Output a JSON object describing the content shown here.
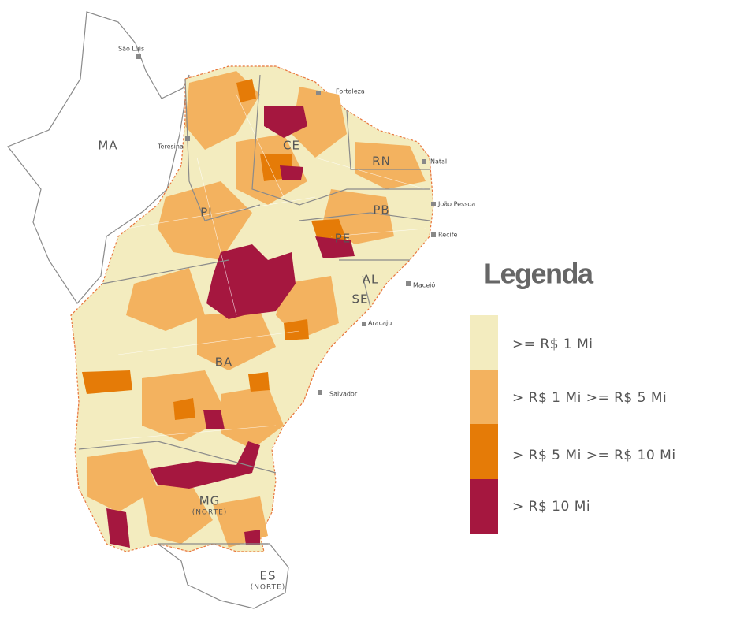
{
  "map": {
    "states": [
      {
        "label": "MA"
      },
      {
        "label": "PI"
      },
      {
        "label": "CE"
      },
      {
        "label": "RN"
      },
      {
        "label": "PB"
      },
      {
        "label": "PE"
      },
      {
        "label": "AL"
      },
      {
        "label": "SE"
      },
      {
        "label": "BA"
      },
      {
        "label": "MG",
        "note": "(NORTE)"
      },
      {
        "label": "ES",
        "note": "(NORTE)"
      }
    ],
    "cities": [
      "São Luís",
      "Teresina",
      "Fortaleza",
      "Natal",
      "João Pessoa",
      "Recife",
      "Maceió",
      "Aracaju",
      "Salvador"
    ]
  },
  "legend": {
    "title": "Legenda",
    "items": [
      {
        "label": ">= R$ 1 Mi",
        "color": "#f3ecbf"
      },
      {
        "label": "> R$ 1 Mi >= R$ 5 Mi",
        "color": "#f3b25f"
      },
      {
        "label": "> R$ 5 Mi >= R$ 10 Mi",
        "color": "#e57b07"
      },
      {
        "label": "> R$ 10 Mi",
        "color": "#a5173f"
      }
    ]
  }
}
